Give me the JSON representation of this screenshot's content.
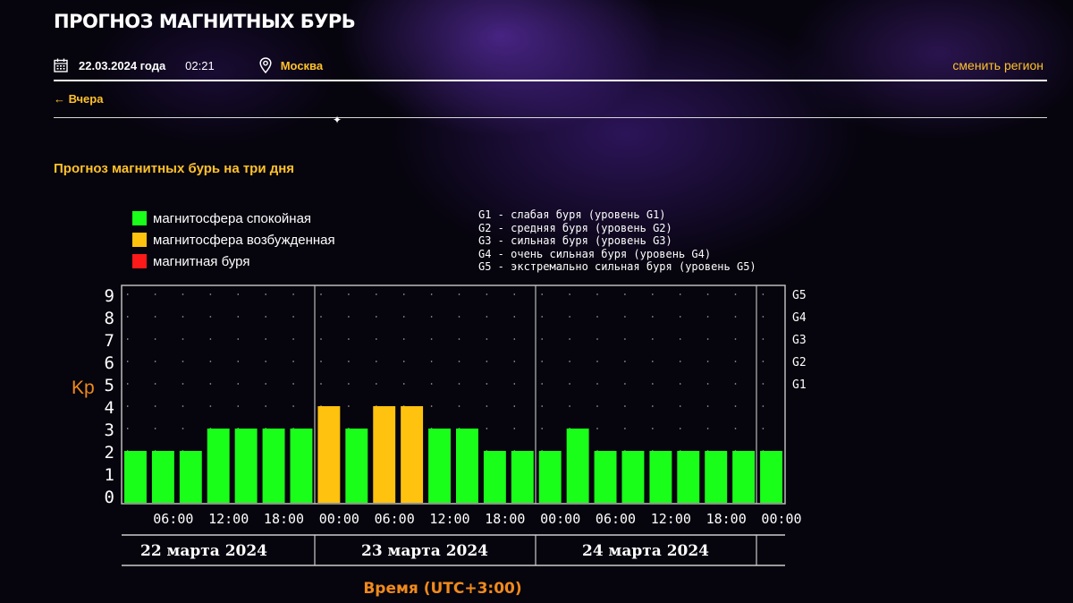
{
  "header": {
    "title": "ПРОГНОЗ МАГНИТНЫХ БУРЬ",
    "date": "22.03.2024 года",
    "time": "02:21",
    "city": "Москва",
    "change_region": "сменить регион",
    "back_link": "← Вчера"
  },
  "section_title": "Прогноз магнитных бурь на три дня",
  "legend": [
    {
      "label": "магнитосфера спокойная",
      "color": "#1aff1a"
    },
    {
      "label": "магнитосфера возбужденная",
      "color": "#ffc20e"
    },
    {
      "label": "магнитная буря",
      "color": "#ff1a1a"
    }
  ],
  "g_levels": [
    "G1 - слабая буря (уровень G1)",
    "G2 - средняя буря (уровень G2)",
    "G3 - сильная буря (уровень G3)",
    "G4 - очень сильная буря (уровень G4)",
    "G5 - экстремально сильная буря (уровень G5)"
  ],
  "colors": {
    "accent": "#ffc22a",
    "axis_label": "#f08a1c"
  },
  "chart_data": {
    "type": "bar",
    "ylabel": "Kp",
    "xlabel": "Время (UTC+3:00)",
    "ylim": [
      0,
      9
    ],
    "y_ticks": [
      "0",
      "1",
      "2",
      "3",
      "4",
      "5",
      "6",
      "7",
      "8",
      "9"
    ],
    "g_ticks": [
      {
        "label": "G1",
        "value": 5
      },
      {
        "label": "G2",
        "value": 6
      },
      {
        "label": "G3",
        "value": 7
      },
      {
        "label": "G4",
        "value": 8
      },
      {
        "label": "G5",
        "value": 9
      }
    ],
    "x_ticks": [
      "06:00",
      "12:00",
      "18:00",
      "00:00",
      "06:00",
      "12:00",
      "18:00",
      "00:00",
      "06:00",
      "12:00",
      "18:00",
      "00:00"
    ],
    "days": [
      "22 марта 2024",
      "23 марта 2024",
      "24 марта 2024"
    ],
    "values": [
      2,
      2,
      2,
      3,
      3,
      3,
      3,
      4,
      3,
      4,
      4,
      3,
      3,
      2,
      2,
      2,
      3,
      2,
      2,
      2,
      2,
      2,
      2,
      2
    ],
    "status": [
      "quiet",
      "quiet",
      "quiet",
      "quiet",
      "quiet",
      "quiet",
      "quiet",
      "excited",
      "quiet",
      "excited",
      "excited",
      "quiet",
      "quiet",
      "quiet",
      "quiet",
      "quiet",
      "quiet",
      "quiet",
      "quiet",
      "quiet",
      "quiet",
      "quiet",
      "quiet",
      "quiet"
    ]
  }
}
